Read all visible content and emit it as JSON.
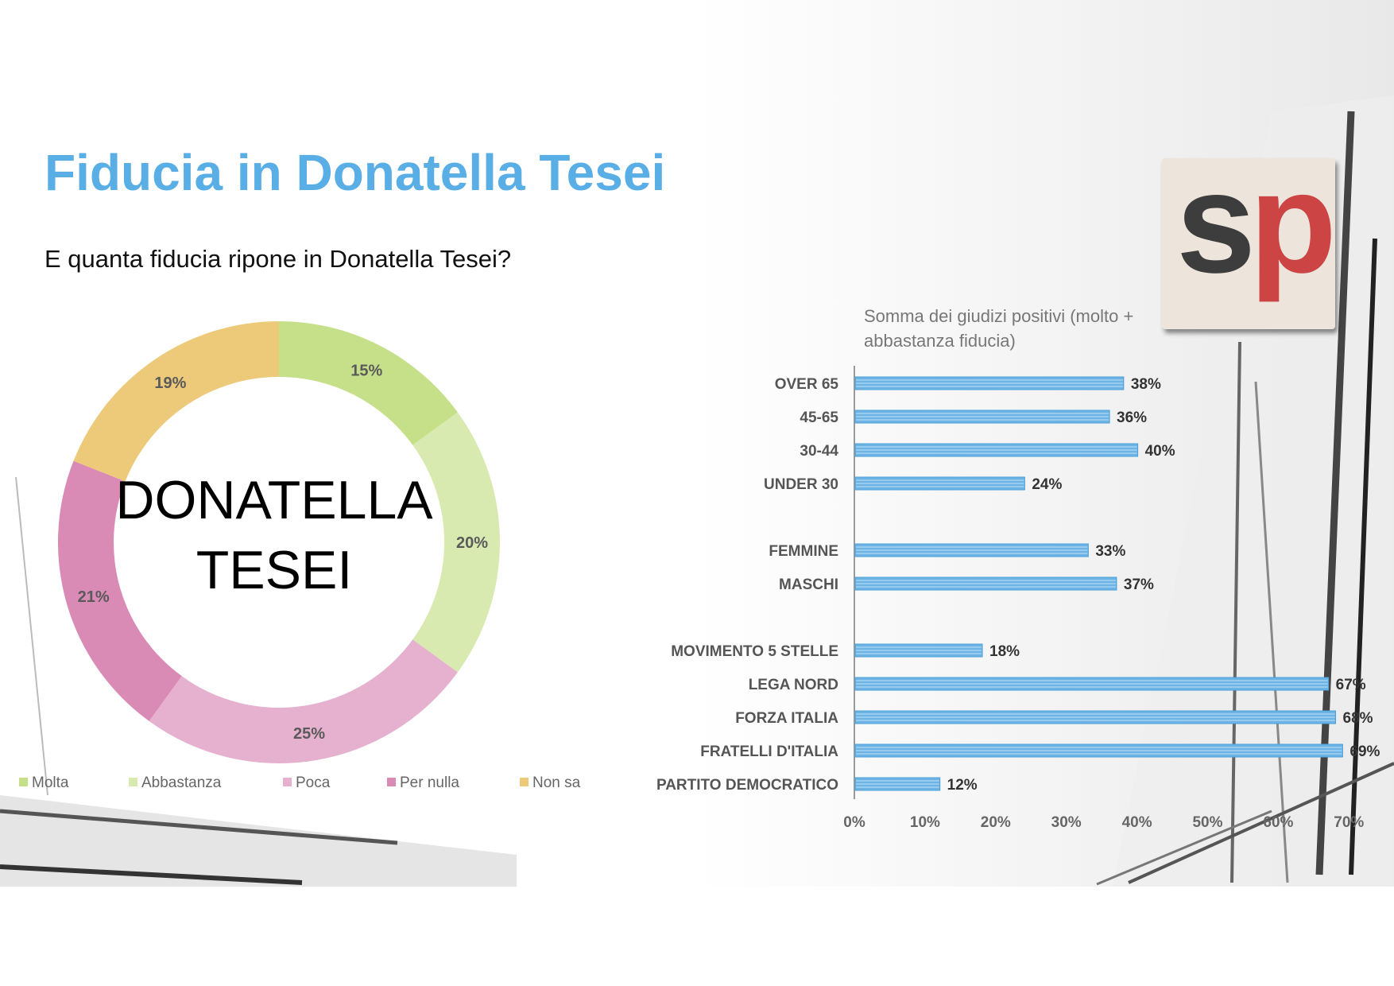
{
  "slide": {
    "title": "Fiducia in Donatella Tesei",
    "subtitle": "E quanta fiducia ripone in Donatella Tesei?",
    "logo_text": [
      "s",
      "p"
    ],
    "accent_color": "#5aaee6"
  },
  "donut_center": [
    "DONATELLA",
    "TESEI"
  ],
  "bar_title": "Somma dei giudizi positivi (molto + abbastanza fiducia)",
  "chart_data": [
    {
      "type": "pie",
      "variant": "donut",
      "categories": [
        "Molta",
        "Abbastanza",
        "Poca",
        "Per nulla",
        "Non sa"
      ],
      "values": [
        15,
        20,
        25,
        21,
        19
      ],
      "value_labels": [
        "15%",
        "20%",
        "25%",
        "21%",
        "19%"
      ],
      "colors": [
        "#c6e08a",
        "#d9eab0",
        "#e6b1cf",
        "#d98ab5",
        "#ecca7a"
      ],
      "legend": "bottom"
    },
    {
      "type": "bar",
      "orientation": "horizontal",
      "title": "Somma dei giudizi positivi (molto + abbastanza fiducia)",
      "categories": [
        "OVER 65",
        "45-65",
        "30-44",
        "UNDER 30",
        "FEMMINE",
        "MASCHI",
        "MOVIMENTO 5 STELLE",
        "LEGA NORD",
        "FORZA ITALIA",
        "FRATELLI D'ITALIA",
        "PARTITO DEMOCRATICO"
      ],
      "values": [
        38,
        36,
        40,
        24,
        33,
        37,
        18,
        67,
        68,
        69,
        12
      ],
      "value_labels": [
        "38%",
        "36%",
        "40%",
        "24%",
        "33%",
        "37%",
        "18%",
        "67%",
        "68%",
        "69%",
        "12%"
      ],
      "groups": [
        [
          0,
          1,
          2,
          3
        ],
        [
          4,
          5
        ],
        [
          6,
          7,
          8,
          9,
          10
        ]
      ],
      "xlim": [
        0,
        70
      ],
      "xticks": [
        "0%",
        "10%",
        "20%",
        "30%",
        "40%",
        "50%",
        "60%",
        "70%"
      ],
      "bar_color": "#6cb4e6",
      "grid": false
    }
  ]
}
